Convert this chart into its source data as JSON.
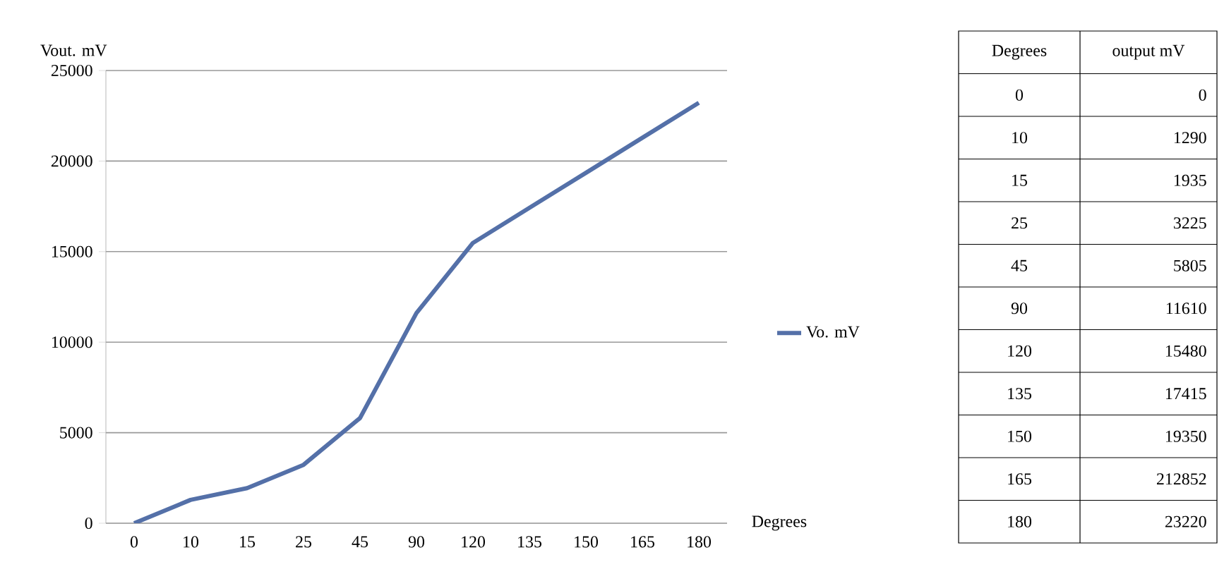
{
  "chart_data": {
    "type": "line",
    "xlabel": "Degrees",
    "ylabel": "Vout. mV",
    "categories": [
      "0",
      "10",
      "15",
      "25",
      "45",
      "90",
      "120",
      "135",
      "150",
      "165",
      "180"
    ],
    "series": [
      {
        "name": "Vo. mV",
        "color": "#5470a8",
        "values": [
          0,
          1290,
          1935,
          3225,
          5805,
          11610,
          15480,
          17415,
          19350,
          21285,
          23220
        ]
      }
    ],
    "ylim": [
      0,
      25000
    ],
    "yticks": [
      0,
      5000,
      10000,
      15000,
      20000,
      25000
    ],
    "grid": "y",
    "legend": "right",
    "marker": "none",
    "line_style": "solid",
    "annotations": [
      "Degrees",
      "output mV",
      "0",
      "1290",
      "1935",
      "3225",
      "5805",
      "11610",
      "15480",
      "17415",
      "19350",
      "212852",
      "23220"
    ]
  }
}
